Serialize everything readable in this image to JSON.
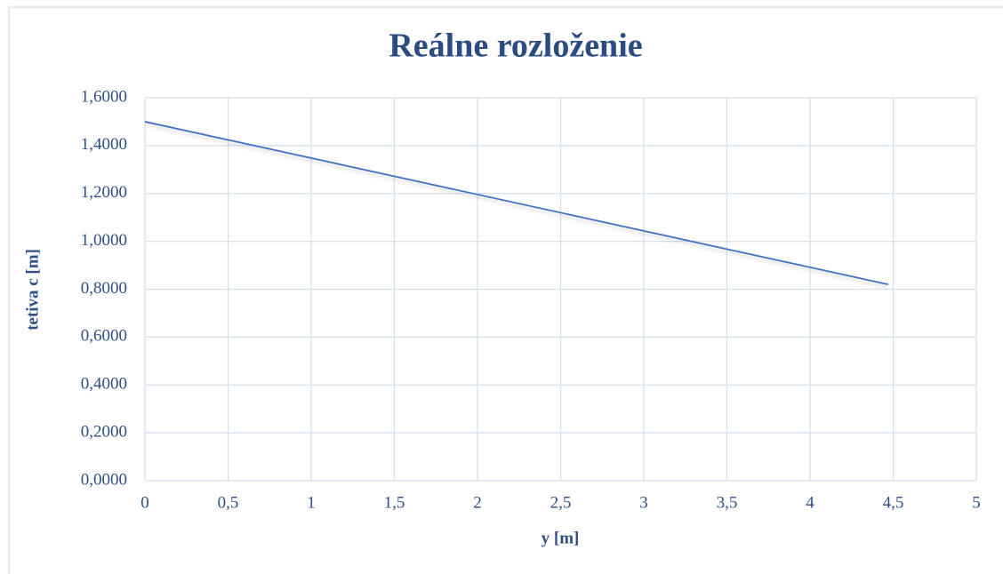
{
  "chart_data": {
    "type": "line",
    "title": "Reálne rozloženie",
    "x_label": "y [m]",
    "y_label": "tetiva c [m]",
    "x": [
      0,
      4.47
    ],
    "series": [
      {
        "name": "tetiva c",
        "color": "#4472c4",
        "values": [
          1.5,
          0.82
        ]
      }
    ],
    "xlim": [
      0,
      5
    ],
    "xticks": [
      0,
      {
        "value": 0.5,
        "label": "0,5"
      },
      1,
      {
        "value": 1.5,
        "label": "1,5"
      },
      2,
      {
        "value": 2.5,
        "label": "2,5"
      },
      3,
      {
        "value": 3.5,
        "label": "3,5"
      },
      4,
      {
        "value": 4.5,
        "label": "4,5"
      },
      5
    ],
    "ylim": [
      0,
      1.6
    ],
    "yticks": [
      {
        "value": 0,
        "label": "0,0000"
      },
      {
        "value": 0.2,
        "label": "0,2000"
      },
      {
        "value": 0.4,
        "label": "0,4000"
      },
      {
        "value": 0.6,
        "label": "0,6000"
      },
      {
        "value": 0.8,
        "label": "0,8000"
      },
      {
        "value": 1.0,
        "label": "1,0000"
      },
      {
        "value": 1.2,
        "label": "1,2000"
      },
      {
        "value": 1.4,
        "label": "1,4000"
      },
      {
        "value": 1.6,
        "label": "1,6000"
      }
    ],
    "grid": true
  }
}
